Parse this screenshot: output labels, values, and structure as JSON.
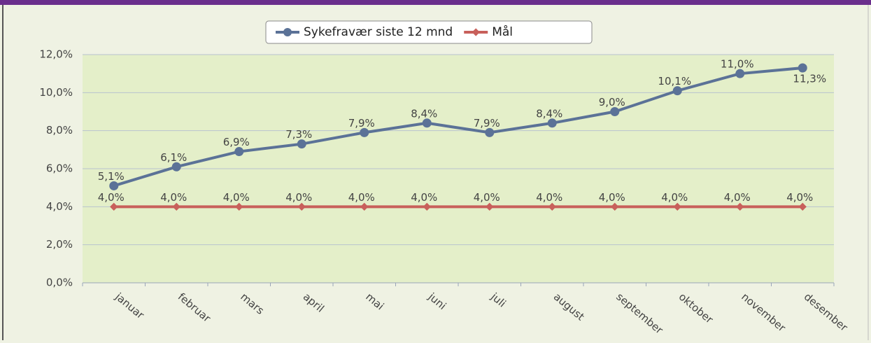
{
  "chart_data": {
    "type": "line",
    "categories": [
      "januar",
      "februar",
      "mars",
      "april",
      "mai",
      "juni",
      "juli",
      "august",
      "september",
      "oktober",
      "november",
      "desember"
    ],
    "series": [
      {
        "name": "Sykefravær siste 12 mnd",
        "color": "#5b7297",
        "values": [
          5.1,
          6.1,
          6.9,
          7.3,
          7.9,
          8.4,
          7.9,
          8.4,
          9.0,
          10.1,
          11.0,
          11.3
        ],
        "value_labels": [
          "5,1%",
          "6,1%",
          "6,9%",
          "7,3%",
          "7,9%",
          "8,4%",
          "7,9%",
          "8,4%",
          "9,0%",
          "10,1%",
          "11,0%",
          "11,3%"
        ]
      },
      {
        "name": "Mål",
        "color": "#c8605b",
        "values": [
          4.0,
          4.0,
          4.0,
          4.0,
          4.0,
          4.0,
          4.0,
          4.0,
          4.0,
          4.0,
          4.0,
          4.0
        ],
        "value_labels": [
          "4,0%",
          "4,0%",
          "4,0%",
          "4,0%",
          "4,0%",
          "4,0%",
          "4,0%",
          "4,0%",
          "4,0%",
          "4,0%",
          "4,0%",
          "4,0%"
        ]
      }
    ],
    "ylim": [
      0,
      12
    ],
    "yticks": [
      {
        "value": 0,
        "label": "0,0%"
      },
      {
        "value": 2,
        "label": "2,0%"
      },
      {
        "value": 4,
        "label": "4,0%"
      },
      {
        "value": 6,
        "label": "6,0%"
      },
      {
        "value": 8,
        "label": "8,0%"
      },
      {
        "value": 10,
        "label": "10,0%"
      },
      {
        "value": 12,
        "label": "12,0%"
      }
    ],
    "grid": true,
    "legend": "top"
  }
}
